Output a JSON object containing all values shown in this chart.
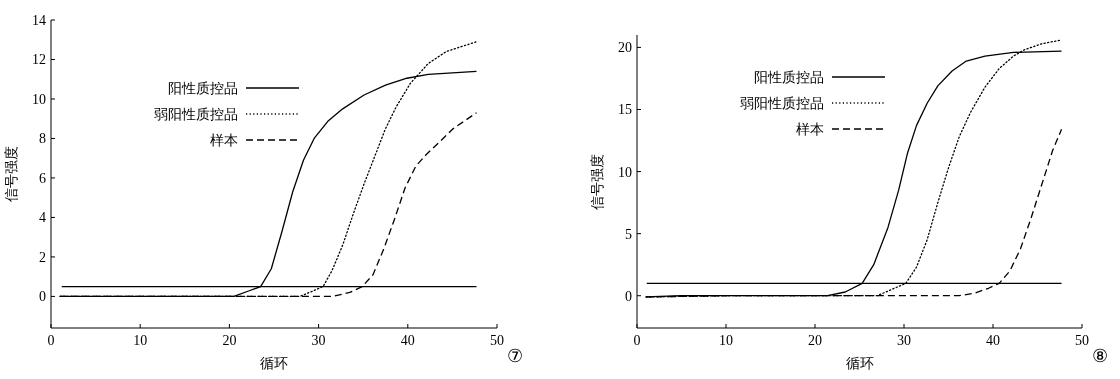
{
  "chart_data": [
    {
      "type": "line",
      "xlabel": "循环",
      "ylabel": "信号强度",
      "xlim": [
        0,
        50
      ],
      "ylim": [
        -1.6,
        14
      ],
      "xticks": [
        0,
        10,
        20,
        30,
        40,
        50
      ],
      "yticks": [
        0,
        2,
        4,
        6,
        8,
        10,
        12,
        14
      ],
      "legend": "top left",
      "grid": false,
      "marker": "none",
      "annotations": [
        "⑦"
      ],
      "series": [
        {
          "name": "阳性质控品",
          "color": "#000000",
          "line_style": "solid",
          "x": [
            1,
            10,
            20.5,
            22.3,
            23.5,
            24.7,
            25.9,
            27.1,
            28.3,
            29.5,
            31.1,
            32.7,
            35.1,
            37.5,
            39.9,
            42.3,
            47.7
          ],
          "values": [
            0,
            0,
            0,
            0.3,
            0.5,
            1.4,
            3.3,
            5.3,
            6.9,
            8.0,
            8.9,
            9.5,
            10.2,
            10.7,
            11.05,
            11.25,
            11.4
          ]
        },
        {
          "name": "弱阳性质控品",
          "color": "#000000",
          "line_style": "dotted",
          "x": [
            1,
            10,
            20,
            27.9,
            29.5,
            30.5,
            31.5,
            32.7,
            33.9,
            35.1,
            36.3,
            37.5,
            38.7,
            40.3,
            42.3,
            44.3,
            47.7
          ],
          "values": [
            0,
            0,
            0,
            0,
            0.3,
            0.5,
            1.3,
            2.6,
            4.2,
            5.7,
            7.1,
            8.5,
            9.6,
            10.8,
            11.8,
            12.4,
            12.9
          ]
        },
        {
          "name": "样本",
          "color": "#000000",
          "line_style": "dashed",
          "x": [
            1,
            10,
            20,
            31.5,
            33.5,
            34.9,
            36.1,
            37.3,
            38.5,
            39.7,
            40.9,
            42.1,
            43.5,
            45.1,
            47.7
          ],
          "values": [
            0,
            0,
            0,
            0,
            0.2,
            0.5,
            1.1,
            2.4,
            3.9,
            5.5,
            6.6,
            7.2,
            7.8,
            8.5,
            9.3
          ]
        },
        {
          "color": "#000000",
          "line_style": "solid",
          "x": [
            1.2,
            47.7
          ],
          "values": [
            0.5,
            0.5
          ]
        }
      ]
    },
    {
      "type": "line",
      "xlabel": "循环",
      "ylabel": "信号强度",
      "xlim": [
        0,
        50
      ],
      "ylim": [
        -2.6,
        21
      ],
      "xticks": [
        0,
        10,
        20,
        30,
        40,
        50
      ],
      "yticks": [
        0,
        5,
        10,
        15,
        20
      ],
      "legend": "top left",
      "grid": false,
      "marker": "none",
      "annotations": [
        "⑧"
      ],
      "series": [
        {
          "name": "阳性质控品",
          "color": "#000000",
          "line_style": "solid",
          "x": [
            1,
            5,
            10,
            21.4,
            23.4,
            25.3,
            26.6,
            28.2,
            29.4,
            30.4,
            31.4,
            32.6,
            33.8,
            35.4,
            37.0,
            39.1,
            42.3,
            47.7
          ],
          "values": [
            -0.1,
            0,
            0,
            0,
            0.3,
            1.0,
            2.5,
            5.5,
            8.5,
            11.5,
            13.7,
            15.5,
            16.9,
            18.1,
            18.9,
            19.3,
            19.6,
            19.7
          ]
        },
        {
          "name": "弱阳性质控品",
          "color": "#000000",
          "line_style": "dotted",
          "x": [
            1,
            10,
            20,
            27.0,
            28.6,
            30.2,
            31.4,
            32.6,
            33.8,
            35.0,
            36.2,
            37.5,
            39.1,
            40.7,
            42.3,
            43.5,
            45.5,
            47.7
          ],
          "values": [
            -0.1,
            0,
            0,
            0,
            0.5,
            1.0,
            2.3,
            4.5,
            7.5,
            10.3,
            12.8,
            14.8,
            16.8,
            18.3,
            19.3,
            19.8,
            20.3,
            20.6
          ]
        },
        {
          "name": "样本",
          "color": "#000000",
          "line_style": "dashed",
          "x": [
            1,
            10,
            20,
            30,
            36.2,
            37.9,
            39.5,
            40.7,
            41.9,
            43.1,
            44.3,
            45.5,
            46.7,
            47.7
          ],
          "values": [
            -0.1,
            0,
            0,
            0,
            0,
            0.2,
            0.6,
            1.0,
            2.0,
            3.8,
            6.3,
            9.0,
            11.7,
            13.4
          ]
        },
        {
          "color": "#000000",
          "line_style": "solid",
          "x": [
            1.1,
            47.7
          ],
          "values": [
            1,
            1
          ]
        }
      ]
    }
  ]
}
